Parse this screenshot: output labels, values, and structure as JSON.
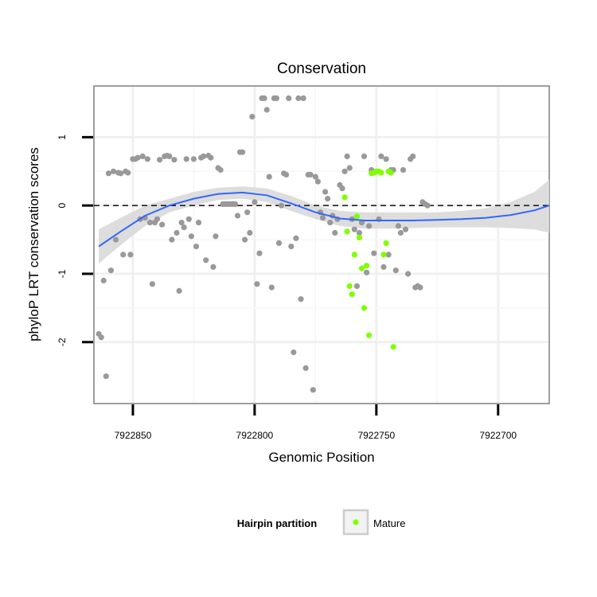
{
  "chart_data": {
    "type": "scatter",
    "title": "Conservation",
    "xlabel": "Genomic Position",
    "ylabel": "phyloP LRT conservation scores",
    "x_reversed": true,
    "xlim": [
      7922866,
      7922679
    ],
    "ylim": [
      -2.9,
      1.75
    ],
    "x_ticks": [
      7922850,
      7922800,
      7922750,
      7922700
    ],
    "x_tick_labels": [
      "7922850",
      "7922800",
      "7922750",
      "7922700"
    ],
    "y_ticks": [
      -2,
      -1,
      0,
      1
    ],
    "y_tick_labels": [
      "-2",
      "-1",
      "0",
      "1"
    ],
    "grid": true,
    "reference_line": {
      "y": 0,
      "style": "dashed"
    },
    "legend": {
      "title": "Hairpin partition",
      "position": "bottom",
      "entries": [
        {
          "label": "Mature",
          "color": "#7fff00"
        }
      ]
    },
    "colors": {
      "other": "#999999",
      "mature": "#7fff00",
      "smooth": "#3366ff",
      "band": "#d9d9d9"
    },
    "series": [
      {
        "name": "Other",
        "points": [
          [
            7922864,
            -1.88
          ],
          [
            7922863,
            -1.93
          ],
          [
            7922862,
            -1.1
          ],
          [
            7922861,
            -2.5
          ],
          [
            7922860,
            0.47
          ],
          [
            7922859,
            -0.95
          ],
          [
            7922858,
            0.5
          ],
          [
            7922857,
            -0.5
          ],
          [
            7922856,
            0.48
          ],
          [
            7922855,
            0.47
          ],
          [
            7922854,
            -0.72
          ],
          [
            7922853,
            0.5
          ],
          [
            7922852,
            0.48
          ],
          [
            7922851,
            -0.72
          ],
          [
            7922850,
            0.68
          ],
          [
            7922849,
            0.68
          ],
          [
            7922848,
            0.7
          ],
          [
            7922847,
            -0.2
          ],
          [
            7922846,
            0.72
          ],
          [
            7922845,
            -0.18
          ],
          [
            7922844,
            0.68
          ],
          [
            7922843,
            -0.25
          ],
          [
            7922842,
            -1.15
          ],
          [
            7922841,
            -0.25
          ],
          [
            7922840,
            -0.2
          ],
          [
            7922839,
            0.67
          ],
          [
            7922838,
            -0.28
          ],
          [
            7922837,
            0.72
          ],
          [
            7922836,
            0.73
          ],
          [
            7922835,
            0.72
          ],
          [
            7922834,
            -0.5
          ],
          [
            7922833,
            0.67
          ],
          [
            7922832,
            -0.4
          ],
          [
            7922831,
            -1.25
          ],
          [
            7922830,
            -0.25
          ],
          [
            7922829,
            -0.32
          ],
          [
            7922828,
            0.68
          ],
          [
            7922827,
            -0.2
          ],
          [
            7922826,
            -0.45
          ],
          [
            7922825,
            0.68
          ],
          [
            7922824,
            -0.6
          ],
          [
            7922823,
            -0.25
          ],
          [
            7922822,
            0.7
          ],
          [
            7922821,
            0.72
          ],
          [
            7922820,
            -0.8
          ],
          [
            7922819,
            0.73
          ],
          [
            7922818,
            0.7
          ],
          [
            7922817,
            -0.9
          ],
          [
            7922816,
            -0.45
          ],
          [
            7922815,
            0.55
          ],
          [
            7922814,
            0.52
          ],
          [
            7922813,
            0.02
          ],
          [
            7922812,
            0.02
          ],
          [
            7922811,
            0.02
          ],
          [
            7922810,
            0.02
          ],
          [
            7922809,
            0.02
          ],
          [
            7922808,
            0.02
          ],
          [
            7922807,
            -0.15
          ],
          [
            7922806,
            0.78
          ],
          [
            7922805,
            0.78
          ],
          [
            7922804,
            -0.5
          ],
          [
            7922803,
            -0.1
          ],
          [
            7922802,
            -0.4
          ],
          [
            7922801,
            1.3
          ],
          [
            7922800,
            0.05
          ],
          [
            7922799,
            -1.15
          ],
          [
            7922798,
            -0.7
          ],
          [
            7922797,
            1.57
          ],
          [
            7922796,
            1.57
          ],
          [
            7922795,
            1.4
          ],
          [
            7922794,
            0.42
          ],
          [
            7922793,
            -1.2
          ],
          [
            7922792,
            1.57
          ],
          [
            7922791,
            1.57
          ],
          [
            7922790,
            -0.55
          ],
          [
            7922789,
            0.0
          ],
          [
            7922788,
            0.47
          ],
          [
            7922787,
            0.45
          ],
          [
            7922786,
            1.57
          ],
          [
            7922785,
            -0.6
          ],
          [
            7922784,
            -2.15
          ],
          [
            7922783,
            -0.48
          ],
          [
            7922782,
            1.57
          ],
          [
            7922781,
            -1.37
          ],
          [
            7922780,
            1.57
          ],
          [
            7922779,
            -2.38
          ],
          [
            7922778,
            0.45
          ],
          [
            7922777,
            0.45
          ],
          [
            7922776,
            -2.7
          ],
          [
            7922775,
            0.42
          ],
          [
            7922774,
            0.35
          ],
          [
            7922773,
            -0.1
          ],
          [
            7922772,
            -0.18
          ],
          [
            7922771,
            0.2
          ],
          [
            7922770,
            0.1
          ],
          [
            7922769,
            -0.25
          ],
          [
            7922768,
            -0.15
          ],
          [
            7922767,
            -0.4
          ],
          [
            7922766,
            -0.2
          ],
          [
            7922765,
            0.3
          ],
          [
            7922764,
            0.25
          ],
          [
            7922763,
            0.5
          ],
          [
            7922762,
            0.72
          ],
          [
            7922761,
            0.55
          ],
          [
            7922760,
            -0.2
          ],
          [
            7922759,
            -0.35
          ],
          [
            7922758,
            -1.18
          ],
          [
            7922757,
            -0.4
          ],
          [
            7922756,
            -0.25
          ],
          [
            7922755,
            0.72
          ],
          [
            7922754,
            -0.98
          ],
          [
            7922753,
            -0.3
          ],
          [
            7922752,
            0.52
          ],
          [
            7922751,
            -0.7
          ],
          [
            7922750,
            0.5
          ],
          [
            7922749,
            -0.2
          ],
          [
            7922748,
            0.72
          ],
          [
            7922747,
            -0.9
          ],
          [
            7922746,
            0.68
          ],
          [
            7922745,
            -0.72
          ],
          [
            7922744,
            0.52
          ],
          [
            7922743,
            0.52
          ],
          [
            7922742,
            -0.95
          ],
          [
            7922741,
            -0.3
          ],
          [
            7922740,
            -0.4
          ],
          [
            7922739,
            0.52
          ],
          [
            7922738,
            -0.35
          ],
          [
            7922737,
            -1.0
          ],
          [
            7922736,
            0.68
          ],
          [
            7922735,
            0.72
          ],
          [
            7922734,
            -1.2
          ],
          [
            7922733,
            -1.18
          ],
          [
            7922732,
            -1.2
          ],
          [
            7922731,
            0.05
          ],
          [
            7922730,
            0.02
          ],
          [
            7922729,
            0.0
          ]
        ]
      },
      {
        "name": "Mature",
        "points": [
          [
            7922763,
            0.12
          ],
          [
            7922762,
            -0.38
          ],
          [
            7922761,
            -1.18
          ],
          [
            7922760,
            -1.3
          ],
          [
            7922759,
            -0.72
          ],
          [
            7922758,
            -0.16
          ],
          [
            7922757,
            -0.47
          ],
          [
            7922756,
            -0.92
          ],
          [
            7922755,
            -1.5
          ],
          [
            7922754,
            -0.88
          ],
          [
            7922753,
            -1.9
          ],
          [
            7922752,
            0.47
          ],
          [
            7922751,
            0.48
          ],
          [
            7922750,
            0.5
          ],
          [
            7922749,
            0.5
          ],
          [
            7922748,
            0.48
          ],
          [
            7922747,
            -0.72
          ],
          [
            7922746,
            -0.55
          ],
          [
            7922745,
            0.5
          ],
          [
            7922744,
            0.48
          ],
          [
            7922743,
            -2.07
          ]
        ]
      }
    ],
    "smooth": {
      "x": [
        7922864,
        7922855,
        7922845,
        7922835,
        7922825,
        7922815,
        7922805,
        7922795,
        7922785,
        7922775,
        7922765,
        7922755,
        7922745,
        7922735,
        7922725,
        7922715,
        7922705,
        7922695,
        7922685,
        7922679
      ],
      "y": [
        -0.6,
        -0.38,
        -0.15,
        0.0,
        0.1,
        0.17,
        0.19,
        0.15,
        0.03,
        -0.1,
        -0.19,
        -0.22,
        -0.22,
        -0.22,
        -0.21,
        -0.2,
        -0.18,
        -0.14,
        -0.07,
        0.0
      ],
      "lower": [
        -0.85,
        -0.58,
        -0.3,
        -0.1,
        0.0,
        0.08,
        0.1,
        0.05,
        -0.08,
        -0.2,
        -0.3,
        -0.34,
        -0.34,
        -0.33,
        -0.32,
        -0.32,
        -0.32,
        -0.33,
        -0.35,
        -0.4
      ],
      "upper": [
        -0.35,
        -0.18,
        0.0,
        0.1,
        0.2,
        0.26,
        0.28,
        0.25,
        0.14,
        0.0,
        -0.08,
        -0.1,
        -0.1,
        -0.1,
        -0.1,
        -0.08,
        -0.04,
        0.05,
        0.2,
        0.38
      ]
    }
  }
}
